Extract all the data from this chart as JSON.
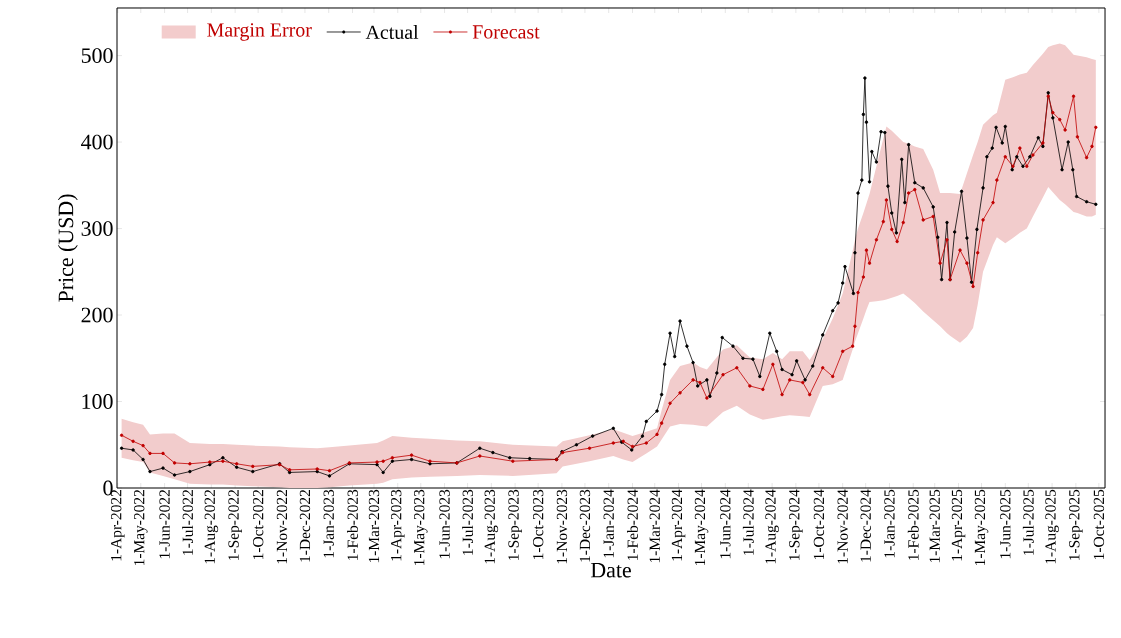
{
  "chart_data": {
    "type": "line",
    "xlabel": "Date",
    "ylabel": "Price (USD)",
    "xlim": [
      "2022-03-31",
      "2025-10-09"
    ],
    "ylim": [
      0,
      555
    ],
    "yticks": [
      0,
      100,
      200,
      300,
      400,
      500
    ],
    "xticks": [
      {
        "value": "2022-04-01",
        "label": "1-Apr-2022"
      },
      {
        "value": "2022-05-01",
        "label": "1-May-2022"
      },
      {
        "value": "2022-06-01",
        "label": "1-Jun-2022"
      },
      {
        "value": "2022-07-01",
        "label": "1-Jul-2022"
      },
      {
        "value": "2022-08-01",
        "label": "1-Aug-2022"
      },
      {
        "value": "2022-09-01",
        "label": "1-Sep-2022"
      },
      {
        "value": "2022-10-01",
        "label": "1-Oct-2022"
      },
      {
        "value": "2022-11-01",
        "label": "1-Nov-2022"
      },
      {
        "value": "2022-12-01",
        "label": "1-Dec-2022"
      },
      {
        "value": "2023-01-01",
        "label": "1-Jan-2023"
      },
      {
        "value": "2023-02-01",
        "label": "1-Feb-2023"
      },
      {
        "value": "2023-03-01",
        "label": "1-Mar-2023"
      },
      {
        "value": "2023-04-01",
        "label": "1-Apr-2023"
      },
      {
        "value": "2023-05-01",
        "label": "1-May-2023"
      },
      {
        "value": "2023-06-01",
        "label": "1-Jun-2023"
      },
      {
        "value": "2023-07-01",
        "label": "1-Jul-2023"
      },
      {
        "value": "2023-08-01",
        "label": "1-Aug-2023"
      },
      {
        "value": "2023-09-01",
        "label": "1-Sep-2023"
      },
      {
        "value": "2023-10-01",
        "label": "1-Oct-2023"
      },
      {
        "value": "2023-11-01",
        "label": "1-Nov-2023"
      },
      {
        "value": "2023-12-01",
        "label": "1-Dec-2023"
      },
      {
        "value": "2024-01-01",
        "label": "1-Jan-2024"
      },
      {
        "value": "2024-02-01",
        "label": "1-Feb-2024"
      },
      {
        "value": "2024-03-01",
        "label": "1-Mar-2024"
      },
      {
        "value": "2024-04-01",
        "label": "1-Apr-2024"
      },
      {
        "value": "2024-05-01",
        "label": "1-May-2024"
      },
      {
        "value": "2024-06-01",
        "label": "1-Jun-2024"
      },
      {
        "value": "2024-07-01",
        "label": "1-Jul-2024"
      },
      {
        "value": "2024-08-01",
        "label": "1-Aug-2024"
      },
      {
        "value": "2024-09-01",
        "label": "1-Sep-2024"
      },
      {
        "value": "2024-10-01",
        "label": "1-Oct-2024"
      },
      {
        "value": "2024-11-01",
        "label": "1-Nov-2024"
      },
      {
        "value": "2024-12-01",
        "label": "1-Dec-2024"
      },
      {
        "value": "2025-01-01",
        "label": "1-Jan-2025"
      },
      {
        "value": "2025-02-01",
        "label": "1-Feb-2025"
      },
      {
        "value": "2025-03-01",
        "label": "1-Mar-2025"
      },
      {
        "value": "2025-04-01",
        "label": "1-Apr-2025"
      },
      {
        "value": "2025-05-01",
        "label": "1-May-2025"
      },
      {
        "value": "2025-06-01",
        "label": "1-Jun-2025"
      },
      {
        "value": "2025-07-01",
        "label": "1-Jul-2025"
      },
      {
        "value": "2025-08-01",
        "label": "1-Aug-2025"
      },
      {
        "value": "2025-09-01",
        "label": "1-Sep-2025"
      },
      {
        "value": "2025-10-01",
        "label": "1-Oct-2025"
      }
    ],
    "annotations": [
      "Margin Error"
    ],
    "grid": false,
    "legend": "top left",
    "marker": "circle",
    "line_style": "solid",
    "series": [
      {
        "name": "Actual",
        "color": "#000000",
        "x": [
          "2022-04-06",
          "2022-04-21",
          "2022-05-04",
          "2022-05-13",
          "2022-05-30",
          "2022-06-14",
          "2022-07-04",
          "2022-07-30",
          "2022-08-16",
          "2022-09-03",
          "2022-09-24",
          "2022-10-29",
          "2022-11-11",
          "2022-12-17",
          "2023-01-02",
          "2023-01-28",
          "2023-03-05",
          "2023-03-13",
          "2023-03-25",
          "2023-04-19",
          "2023-05-13",
          "2023-06-17",
          "2023-07-17",
          "2023-08-03",
          "2023-08-25",
          "2023-09-20",
          "2023-10-25",
          "2023-11-01",
          "2023-11-20",
          "2023-12-11",
          "2024-01-07",
          "2024-01-18",
          "2024-01-31",
          "2024-02-14",
          "2024-02-19",
          "2024-03-04",
          "2024-03-10",
          "2024-03-14",
          "2024-03-21",
          "2024-03-27",
          "2024-04-03",
          "2024-04-12",
          "2024-04-20",
          "2024-04-26",
          "2024-05-08",
          "2024-05-12",
          "2024-05-21",
          "2024-05-28",
          "2024-06-11",
          "2024-06-24",
          "2024-07-07",
          "2024-07-16",
          "2024-07-29",
          "2024-08-07",
          "2024-08-14",
          "2024-08-27",
          "2024-09-02",
          "2024-09-13",
          "2024-09-23",
          "2024-10-06",
          "2024-10-19",
          "2024-10-26",
          "2024-11-01",
          "2024-11-04",
          "2024-11-15",
          "2024-11-17",
          "2024-11-21",
          "2024-11-26",
          "2024-11-28",
          "2024-11-30",
          "2024-12-02",
          "2024-12-06",
          "2024-12-09",
          "2024-12-15",
          "2024-12-21",
          "2024-12-26",
          "2024-12-30",
          "2025-01-04",
          "2025-01-10",
          "2025-01-17",
          "2025-01-21",
          "2025-01-26",
          "2025-02-03",
          "2025-02-14",
          "2025-02-27",
          "2025-03-05",
          "2025-03-10",
          "2025-03-17",
          "2025-03-21",
          "2025-03-27",
          "2025-04-05",
          "2025-04-12",
          "2025-04-18",
          "2025-04-25",
          "2025-05-03",
          "2025-05-08",
          "2025-05-15",
          "2025-05-20",
          "2025-05-28",
          "2025-06-01",
          "2025-06-10",
          "2025-06-16",
          "2025-06-24",
          "2025-07-03",
          "2025-07-14",
          "2025-07-20",
          "2025-07-27",
          "2025-08-02",
          "2025-08-14",
          "2025-08-22",
          "2025-08-28",
          "2025-09-02",
          "2025-09-15",
          "2025-09-27"
        ],
        "values": [
          46,
          44,
          33,
          19,
          23,
          15,
          19,
          27,
          35,
          24,
          19,
          28,
          18,
          19,
          14,
          28,
          27,
          18,
          31,
          33,
          28,
          29,
          46,
          41,
          35,
          34,
          33,
          42,
          50,
          60,
          69,
          53,
          44,
          60,
          77,
          89,
          108,
          143,
          179,
          152,
          193,
          164,
          145,
          118,
          125,
          106,
          133,
          174,
          164,
          150,
          149,
          129,
          179,
          158,
          137,
          131,
          147,
          125,
          141,
          177,
          205,
          214,
          237,
          256,
          225,
          272,
          341,
          356,
          432,
          474,
          423,
          354,
          389,
          377,
          412,
          411,
          349,
          318,
          295,
          380,
          330,
          397,
          353,
          347,
          325,
          290,
          241,
          307,
          241,
          296,
          343,
          289,
          238,
          299,
          347,
          383,
          393,
          417,
          399,
          418,
          368,
          383,
          372,
          383,
          405,
          395,
          457,
          428,
          368,
          400,
          368,
          337,
          331,
          328
        ]
      },
      {
        "name": "Forecast",
        "color": "#c00000",
        "lower": [
          35,
          32,
          30,
          18,
          14,
          10,
          5,
          4,
          4,
          3,
          2,
          1,
          0,
          0,
          1,
          3,
          5,
          6,
          10,
          12,
          13,
          14,
          15,
          14,
          17,
          25,
          31,
          37,
          33,
          30,
          40,
          48,
          56,
          71,
          74,
          73,
          72,
          71,
          88,
          95,
          85,
          79,
          81,
          83,
          84,
          83,
          82,
          118,
          120,
          125,
          160,
          169,
          179,
          196,
          206,
          215,
          216,
          217,
          218,
          220,
          222,
          225,
          220,
          214,
          204,
          194,
          187,
          179,
          176,
          168,
          175,
          185,
          212,
          250,
          281,
          290,
          283,
          289,
          295,
          300,
          314,
          336,
          348,
          342,
          333,
          328,
          319,
          318,
          314,
          314,
          316
        ],
        "upper": [
          80,
          76,
          73,
          62,
          63,
          63,
          52,
          51,
          51,
          50,
          49,
          48,
          47,
          46,
          47,
          49,
          52,
          55,
          60,
          58,
          57,
          55,
          54,
          50,
          48,
          54,
          61,
          68,
          64,
          60,
          65,
          69,
          90,
          125,
          141,
          145,
          140,
          137,
          160,
          165,
          151,
          149,
          156,
          149,
          158,
          158,
          148,
          172,
          196,
          225,
          274,
          287,
          300,
          318,
          329,
          340,
          372,
          404,
          418,
          413,
          407,
          400,
          398,
          395,
          392,
          368,
          341,
          341,
          341,
          340,
          364,
          385,
          400,
          420,
          431,
          434,
          472,
          475,
          478,
          480,
          489,
          502,
          510,
          512,
          514,
          512,
          501,
          500,
          498,
          496,
          495
        ],
        "x": [
          "2022-04-06",
          "2022-04-21",
          "2022-05-04",
          "2022-05-13",
          "2022-05-30",
          "2022-06-14",
          "2022-07-04",
          "2022-07-30",
          "2022-08-16",
          "2022-09-03",
          "2022-09-24",
          "2022-10-29",
          "2022-11-11",
          "2022-12-17",
          "2023-01-02",
          "2023-01-28",
          "2023-03-05",
          "2023-03-13",
          "2023-03-25",
          "2023-04-19",
          "2023-05-13",
          "2023-06-17",
          "2023-07-17",
          "2023-08-29",
          "2023-10-25",
          "2023-11-02",
          "2023-12-07",
          "2024-01-07",
          "2024-01-20",
          "2024-02-01",
          "2024-02-19",
          "2024-03-04",
          "2024-03-10",
          "2024-03-21",
          "2024-04-03",
          "2024-04-20",
          "2024-04-29",
          "2024-05-08",
          "2024-05-29",
          "2024-06-16",
          "2024-07-03",
          "2024-07-20",
          "2024-08-02",
          "2024-08-14",
          "2024-08-24",
          "2024-09-10",
          "2024-09-19",
          "2024-10-06",
          "2024-10-19",
          "2024-11-01",
          "2024-11-14",
          "2024-11-17",
          "2024-11-21",
          "2024-11-28",
          "2024-12-02",
          "2024-12-06",
          "2024-12-15",
          "2024-12-24",
          "2024-12-28",
          "2025-01-04",
          "2025-01-11",
          "2025-01-19",
          "2025-01-26",
          "2025-02-03",
          "2025-02-14",
          "2025-02-27",
          "2025-03-08",
          "2025-03-17",
          "2025-03-21",
          "2025-04-03",
          "2025-04-12",
          "2025-04-20",
          "2025-04-26",
          "2025-05-03",
          "2025-05-16",
          "2025-05-21",
          "2025-06-01",
          "2025-06-11",
          "2025-06-20",
          "2025-06-29",
          "2025-07-07",
          "2025-07-20",
          "2025-07-27",
          "2025-08-02",
          "2025-08-11",
          "2025-08-18",
          "2025-08-29",
          "2025-09-03",
          "2025-09-15",
          "2025-09-22",
          "2025-09-27"
        ],
        "values": [
          61,
          54,
          49,
          40,
          40,
          29,
          28,
          30,
          31,
          28,
          25,
          27,
          21,
          22,
          20,
          29,
          30,
          31,
          35,
          38,
          31,
          29,
          37,
          31,
          33,
          41,
          46,
          52,
          54,
          48,
          52,
          62,
          75,
          98,
          110,
          125,
          122,
          104,
          131,
          139,
          118,
          114,
          143,
          108,
          125,
          122,
          108,
          139,
          129,
          158,
          164,
          187,
          226,
          244,
          275,
          260,
          287,
          308,
          333,
          299,
          285,
          307,
          341,
          345,
          310,
          314,
          260,
          287,
          241,
          275,
          260,
          233,
          272,
          310,
          330,
          356,
          383,
          372,
          393,
          372,
          385,
          399,
          453,
          434,
          426,
          414,
          453,
          406,
          382,
          395,
          417
        ]
      }
    ]
  }
}
